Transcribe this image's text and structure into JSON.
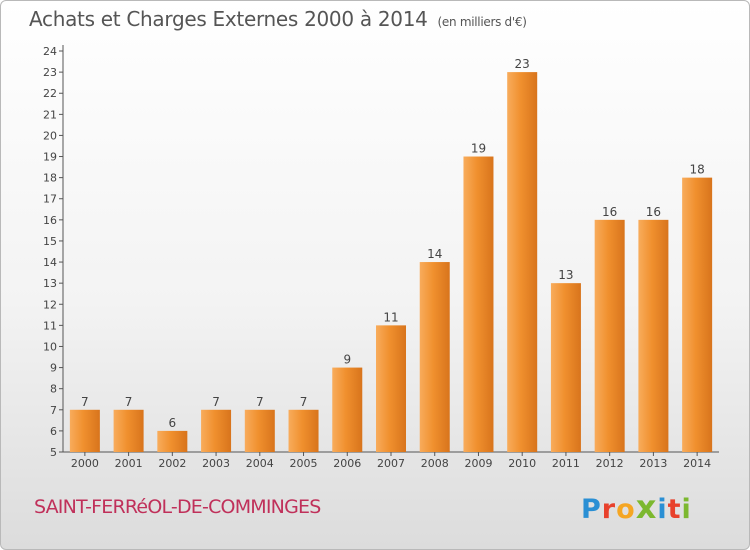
{
  "chart_data": {
    "type": "bar",
    "title": "Achats et Charges Externes 2000 à 2014",
    "subtitle": "(en milliers d'€)",
    "categories": [
      "2000",
      "2001",
      "2002",
      "2003",
      "2004",
      "2005",
      "2006",
      "2007",
      "2008",
      "2009",
      "2010",
      "2011",
      "2012",
      "2013",
      "2014"
    ],
    "values": [
      7,
      7,
      6,
      7,
      7,
      7,
      9,
      11,
      14,
      19,
      23,
      13,
      16,
      16,
      18
    ],
    "ylim": [
      5,
      24
    ],
    "yticks": [
      5,
      6,
      7,
      8,
      9,
      10,
      11,
      12,
      13,
      14,
      15,
      16,
      17,
      18,
      19,
      20,
      21,
      22,
      23,
      24
    ],
    "grid": false,
    "bar_color": "#f0902e",
    "bar_color_light": "#f8ac5c",
    "bar_color_dark": "#d8741c"
  },
  "footer": {
    "town": "SAINT-FERRéOL-DE-COMMINGES",
    "logo_letters": [
      {
        "char": "P",
        "color": "#2a8fd4"
      },
      {
        "char": "r",
        "color": "#e8412c"
      },
      {
        "char": "o",
        "color": "#f5a623"
      },
      {
        "char": "x",
        "color": "#7cb82f"
      },
      {
        "char": "i",
        "color": "#2a8fd4"
      },
      {
        "char": "t",
        "color": "#e8412c"
      },
      {
        "char": "i",
        "color": "#7cb82f"
      }
    ]
  }
}
